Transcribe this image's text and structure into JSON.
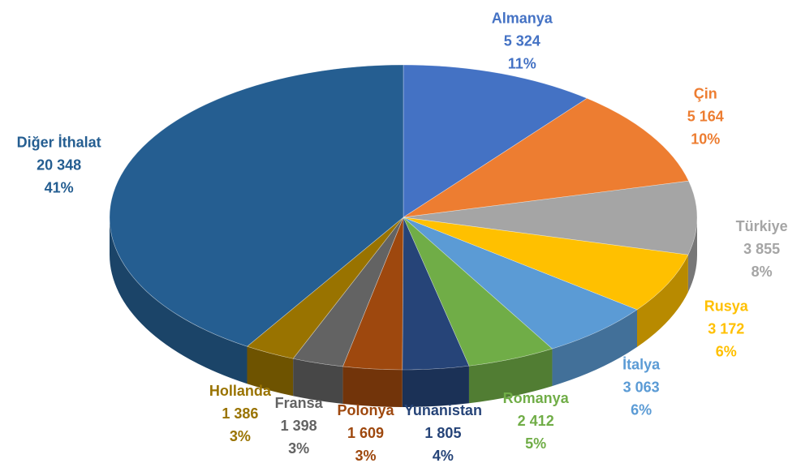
{
  "chart_data": {
    "type": "pie",
    "categories": [
      "Almanya",
      "Çin",
      "Türkiye",
      "Rusya",
      "İtalya",
      "Romanya",
      "Yunanistan",
      "Polonya",
      "Fransa",
      "Hollanda",
      "Diğer İthalat"
    ],
    "values": [
      5324,
      5164,
      3855,
      3172,
      3063,
      2412,
      1805,
      1609,
      1398,
      1386,
      20348
    ],
    "value_labels": [
      "5 324",
      "5 164",
      "3 855",
      "3 172",
      "3 063",
      "2 412",
      "1 805",
      "1 609",
      "1 398",
      "1 386",
      "20 348"
    ],
    "percent_labels": [
      "11%",
      "10%",
      "8%",
      "6%",
      "6%",
      "5%",
      "4%",
      "3%",
      "3%",
      "3%",
      "41%"
    ],
    "colors": [
      "#4472c4",
      "#ed7d31",
      "#a5a5a5",
      "#ffc000",
      "#5b9bd5",
      "#70ad47",
      "#264478",
      "#9e480e",
      "#636363",
      "#997300",
      "#255e91"
    ]
  }
}
